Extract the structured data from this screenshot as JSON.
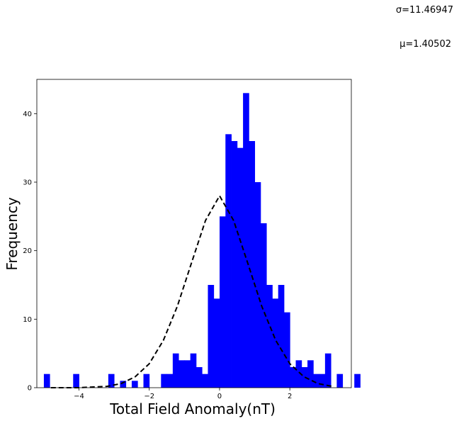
{
  "annotations": [
    {
      "name": "sigma",
      "label": "σ=11.46947"
    },
    {
      "name": "mu",
      "label": "μ=1.40502"
    }
  ],
  "chart_data": {
    "type": "bar",
    "title": "",
    "xlabel": "Total Field Anomaly(nT)",
    "ylabel": "Frequency",
    "xlim": [
      -5.2,
      3.75
    ],
    "ylim": [
      0,
      45
    ],
    "xticks": [
      -4,
      -2,
      0,
      2
    ],
    "xtick_labels": [
      "−4",
      "−2",
      "0",
      "2"
    ],
    "yticks": [
      0,
      10,
      20,
      30,
      40
    ],
    "ytick_labels": [
      "0",
      "10",
      "20",
      "30",
      "40"
    ],
    "grid": false,
    "legend": "none",
    "colors": {
      "bars": "#0000ff",
      "fit_curve": "#000000"
    },
    "histogram": {
      "bin_start": -5.0,
      "bin_width": 0.1667,
      "counts": [
        2,
        0,
        0,
        0,
        0,
        2,
        0,
        0,
        0,
        0,
        0,
        2,
        0,
        1,
        0,
        1,
        0,
        2,
        0,
        0,
        2,
        2,
        5,
        4,
        4,
        5,
        3,
        2,
        15,
        13,
        25,
        37,
        36,
        35,
        43,
        36,
        30,
        24,
        15,
        13,
        15,
        11,
        3,
        4,
        3,
        4,
        2,
        2,
        5,
        0,
        2,
        0,
        0,
        2
      ]
    },
    "series": [
      {
        "type": "line",
        "style": "dashed",
        "x": [
          -4.8,
          -4.4,
          -4.0,
          -3.6,
          -3.2,
          -2.8,
          -2.4,
          -2.0,
          -1.6,
          -1.2,
          -0.8,
          -0.4,
          0.0,
          0.4,
          0.8,
          1.2,
          1.6,
          2.0,
          2.4,
          2.8,
          3.2
        ],
        "y": [
          0.0,
          0.0,
          0.0,
          0.1,
          0.2,
          0.6,
          1.6,
          3.5,
          6.9,
          11.9,
          18.2,
          24.4,
          28.0,
          24.4,
          18.2,
          11.9,
          6.9,
          3.5,
          1.6,
          0.6,
          0.2
        ]
      }
    ]
  }
}
